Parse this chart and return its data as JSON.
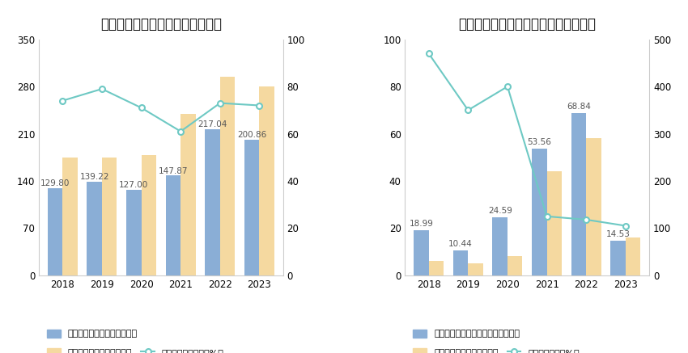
{
  "chart1": {
    "title": "历年经营现金流入、营业收入情况",
    "years": [
      "2018",
      "2019",
      "2020",
      "2021",
      "2022",
      "2023"
    ],
    "cash_inflow": [
      129.8,
      139.22,
      127.0,
      147.87,
      217.04,
      200.86
    ],
    "revenue": [
      175,
      175,
      178,
      240,
      295,
      280
    ],
    "ratio": [
      74,
      79,
      71,
      61,
      73,
      72
    ],
    "left_ylim": [
      0,
      350
    ],
    "left_yticks": [
      0,
      70,
      140,
      210,
      280,
      350
    ],
    "right_ylim": [
      0,
      100
    ],
    "right_yticks": [
      0,
      20,
      40,
      60,
      80,
      100
    ],
    "bar_color_blue": "#8aaed6",
    "bar_color_yellow": "#f5d9a0",
    "line_color": "#6ec9c4",
    "legend1": "左轴：经营现金流入（亿元）",
    "legend2": "左轴：营业总收入（亿元）",
    "legend3": "右轴：营收现金比（%）"
  },
  "chart2": {
    "title": "历年经营现金流净额、归母净利润情况",
    "years": [
      "2018",
      "2019",
      "2020",
      "2021",
      "2022",
      "2023"
    ],
    "cash_net": [
      18.99,
      10.44,
      24.59,
      53.56,
      68.84,
      14.53
    ],
    "net_profit": [
      6,
      5,
      8,
      44,
      58,
      16
    ],
    "ratio": [
      470,
      350,
      400,
      125,
      118,
      105
    ],
    "left_ylim": [
      0,
      100
    ],
    "left_yticks": [
      0,
      20,
      40,
      60,
      80,
      100
    ],
    "right_ylim": [
      0,
      500
    ],
    "right_yticks": [
      0,
      100,
      200,
      300,
      400,
      500
    ],
    "bar_color_blue": "#8aaed6",
    "bar_color_yellow": "#f5d9a0",
    "line_color": "#6ec9c4",
    "legend1": "左轴：经营活动现金流净额（亿元）",
    "legend2": "左轴：归母净利润（亿元）",
    "legend3": "右轴：净现比（%）"
  },
  "background_color": "#ffffff",
  "title_fontsize": 12,
  "tick_fontsize": 8.5,
  "bar_value_fontsize": 7.5
}
